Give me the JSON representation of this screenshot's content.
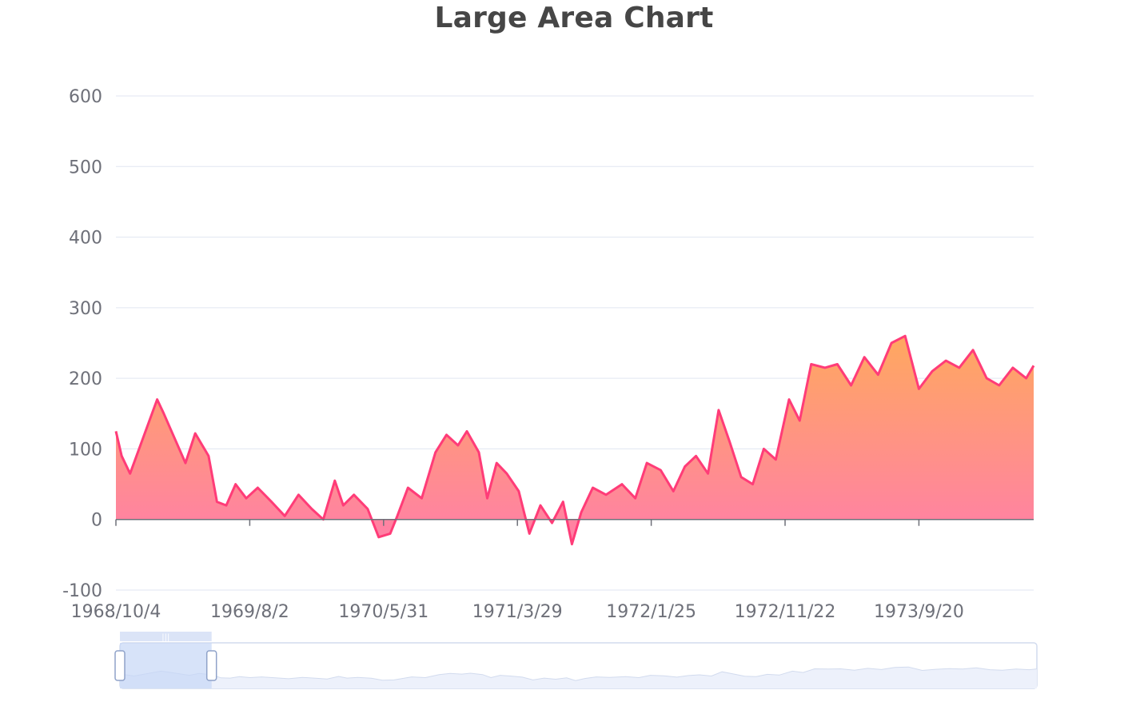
{
  "chart_data": {
    "type": "area",
    "title": "Large Area Chart",
    "xlabel": "",
    "ylabel": "",
    "ylim": [
      -100,
      600
    ],
    "yticks": [
      600,
      500,
      400,
      300,
      200,
      100,
      0,
      -100
    ],
    "x_tick_labels": [
      "1968/10/4",
      "1969/8/2",
      "1970/5/31",
      "1971/3/29",
      "1972/1/25",
      "1972/11/22",
      "1973/9/20"
    ],
    "x_range": [
      "1968/10/4",
      "1974/6/6"
    ],
    "grid": true,
    "colors": {
      "line": "#ff3c78",
      "area_top": "#ffa85f",
      "area_bottom": "#ff7fa8",
      "grid": "#e0e6f1",
      "axis": "#6e7079"
    },
    "series": [
      {
        "x": [
          "1968/10/4",
          "1968/10/17",
          "1968/11/5",
          "1968/12/1",
          "1969/1/5",
          "1969/1/20",
          "1969/2/10",
          "1969/3/10",
          "1969/4/1",
          "1969/5/1",
          "1969/5/20",
          "1969/6/10",
          "1969/7/1",
          "1969/7/25",
          "1969/8/20",
          "1969/9/20",
          "1969/10/20",
          "1969/11/20",
          "1969/12/20",
          "1970/1/15",
          "1970/2/10",
          "1970/3/1",
          "1970/3/25",
          "1970/4/25",
          "1970/5/20",
          "1970/6/15",
          "1970/7/1",
          "1970/7/25",
          "1970/8/25",
          "1970/9/25",
          "1970/10/20",
          "1970/11/15",
          "1970/12/5",
          "1971/1/1",
          "1971/1/20",
          "1971/2/10",
          "1971/3/5",
          "1971/4/1",
          "1971/4/25",
          "1971/5/20",
          "1971/6/15",
          "1971/7/10",
          "1971/7/30",
          "1971/8/20",
          "1971/9/15",
          "1971/10/15",
          "1971/11/20",
          "1971/12/20",
          "1972/1/15",
          "1972/2/15",
          "1972/3/15",
          "1972/4/10",
          "1972/5/5",
          "1972/6/1",
          "1972/6/25",
          "1972/7/20",
          "1972/8/15",
          "1972/9/10",
          "1972/10/5",
          "1972/11/1",
          "1972/12/1",
          "1972/12/25",
          "1973/1/20",
          "1973/2/20",
          "1973/3/20",
          "1973/4/20",
          "1973/5/20",
          "1973/6/20",
          "1973/7/20",
          "1973/8/20",
          "1973/9/20",
          "1973/10/20",
          "1973/11/20",
          "1973/12/20",
          "1974/1/20",
          "1974/2/20",
          "1974/3/20",
          "1974/4/20",
          "1974/5/20",
          "1974/6/6"
        ],
        "values": [
          125,
          90,
          65,
          110,
          170,
          150,
          120,
          80,
          122,
          90,
          25,
          20,
          50,
          30,
          45,
          25,
          5,
          35,
          15,
          0,
          55,
          20,
          35,
          15,
          -25,
          -20,
          5,
          45,
          30,
          95,
          120,
          105,
          125,
          95,
          30,
          80,
          65,
          40,
          -20,
          20,
          -5,
          25,
          -35,
          10,
          45,
          35,
          50,
          30,
          80,
          70,
          40,
          75,
          90,
          65,
          155,
          110,
          60,
          50,
          100,
          85,
          170,
          140,
          220,
          215,
          220,
          190,
          230,
          205,
          250,
          260,
          185,
          210,
          225,
          215,
          240,
          200,
          190,
          215,
          200,
          218
        ]
      }
    ]
  },
  "datazoom": {
    "range_start_percent": 0,
    "range_end_percent": 10,
    "handle_grip": "|||"
  }
}
